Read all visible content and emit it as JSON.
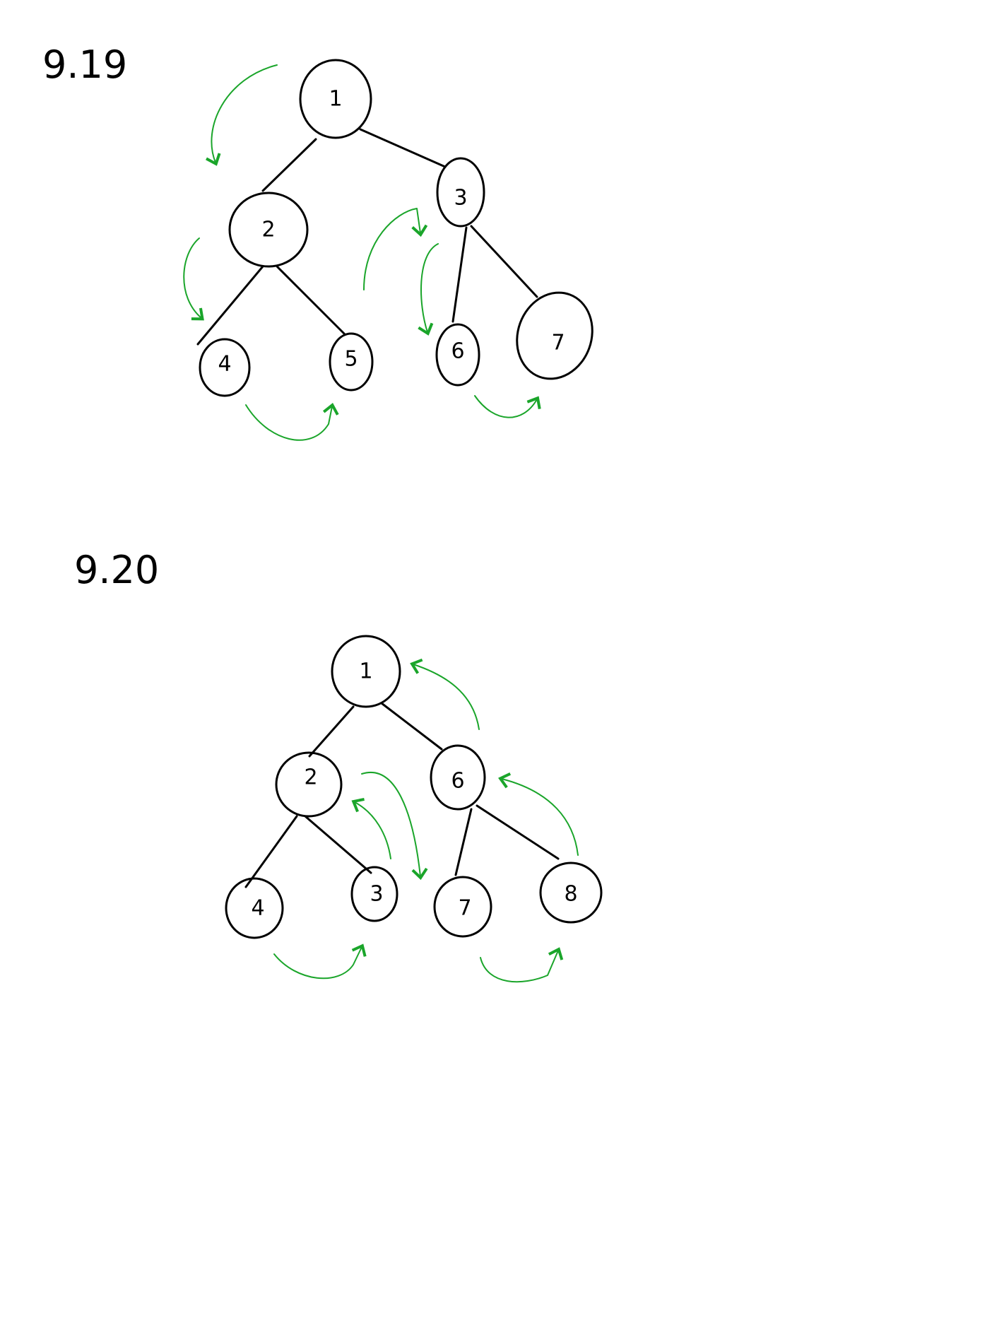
{
  "colors": {
    "ink": "#000000",
    "arrow": "#1aa52a",
    "background": "#ffffff"
  },
  "diagram_1": {
    "label": "9.19",
    "nodes": [
      {
        "id": "n1",
        "label": "1"
      },
      {
        "id": "n2",
        "label": "2"
      },
      {
        "id": "n3",
        "label": "3"
      },
      {
        "id": "n4",
        "label": "4"
      },
      {
        "id": "n5",
        "label": "5"
      },
      {
        "id": "n6",
        "label": "6"
      },
      {
        "id": "n7",
        "label": "7"
      }
    ],
    "edges": [
      {
        "from": "n1",
        "to": "n2"
      },
      {
        "from": "n1",
        "to": "n3"
      },
      {
        "from": "n2",
        "to": "n4"
      },
      {
        "from": "n2",
        "to": "n5"
      },
      {
        "from": "n3",
        "to": "n6"
      },
      {
        "from": "n3",
        "to": "n7"
      }
    ]
  },
  "diagram_2": {
    "label": "9.20",
    "nodes": [
      {
        "id": "m1",
        "label": "1"
      },
      {
        "id": "m2",
        "label": "2"
      },
      {
        "id": "m6",
        "label": "6"
      },
      {
        "id": "m4",
        "label": "4"
      },
      {
        "id": "m3",
        "label": "3"
      },
      {
        "id": "m7",
        "label": "7"
      },
      {
        "id": "m8",
        "label": "8"
      }
    ],
    "edges": [
      {
        "from": "m1",
        "to": "m2"
      },
      {
        "from": "m1",
        "to": "m6"
      },
      {
        "from": "m2",
        "to": "m4"
      },
      {
        "from": "m2",
        "to": "m3"
      },
      {
        "from": "m6",
        "to": "m7"
      },
      {
        "from": "m6",
        "to": "m8"
      }
    ]
  }
}
